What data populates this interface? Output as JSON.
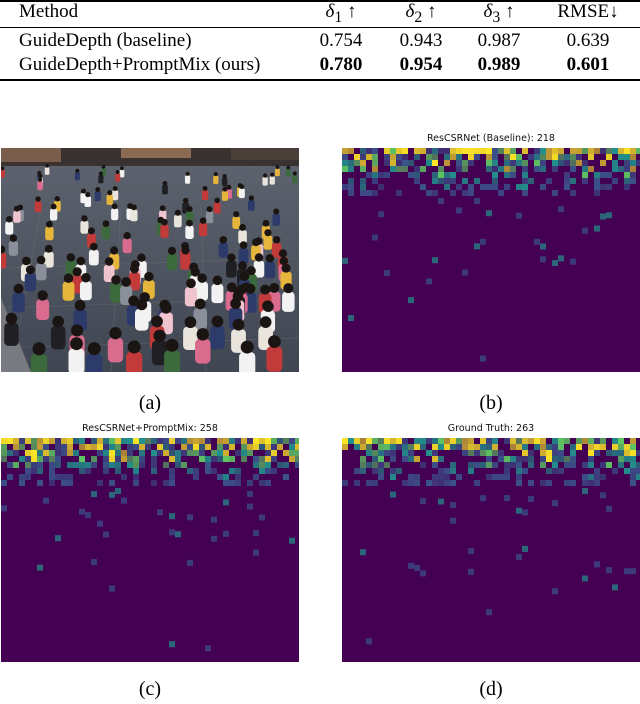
{
  "table": {
    "headers": {
      "method": "Method",
      "d1_sym": "δ",
      "d1_sub": "1",
      "d1_arrow": " ↑",
      "d2_sym": "δ",
      "d2_sub": "2",
      "d2_arrow": " ↑",
      "d3_sym": "δ",
      "d3_sub": "3",
      "d3_arrow": " ↑",
      "rmse": "RMSE↓"
    },
    "rows": [
      {
        "method": "GuideDepth (baseline)",
        "d1": "0.754",
        "d2": "0.943",
        "d3": "0.987",
        "rmse": "0.639"
      },
      {
        "method": "GuideDepth+PromptMix (ours)",
        "d1": "0.780",
        "d2": "0.954",
        "d3": "0.989",
        "rmse": "0.601"
      }
    ]
  },
  "panels": {
    "a": {
      "caption": "(a)",
      "content": "crowd-photo"
    },
    "b": {
      "title": "ResCSRNet (Baseline): 218",
      "caption": "(b)",
      "colormap": "viridis"
    },
    "c": {
      "title": "ResCSRNet+PromptMix: 258",
      "caption": "(c)",
      "colormap": "viridis"
    },
    "d": {
      "title": "Ground Truth: 263",
      "caption": "(d)",
      "colormap": "viridis"
    }
  },
  "colors": {
    "heatmap_background": "#440154",
    "heatmap_low": "#3b528b",
    "heatmap_mid": "#21918c",
    "heatmap_high": "#5ec962",
    "heatmap_peak": "#fde725"
  }
}
